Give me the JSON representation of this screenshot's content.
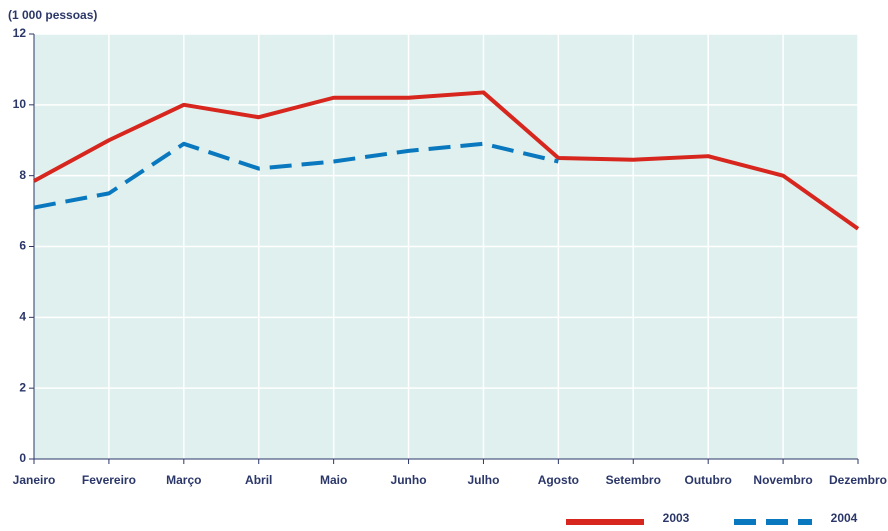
{
  "chart_data": {
    "type": "line",
    "y_label": "(1 000 pessoas)",
    "categories": [
      "Janeiro",
      "Fevereiro",
      "Março",
      "Abril",
      "Maio",
      "Junho",
      "Julho",
      "Agosto",
      "Setembro",
      "Outubro",
      "Novembro",
      "Dezembro"
    ],
    "series": [
      {
        "name": "2003",
        "color": "#d7261e",
        "dashed": false,
        "values": [
          7.85,
          9.0,
          10.0,
          9.65,
          10.2,
          10.2,
          10.35,
          8.5,
          8.45,
          8.55,
          8.0,
          6.5
        ]
      },
      {
        "name": "2004",
        "color": "#0a78be",
        "dashed": true,
        "values": [
          7.1,
          7.5,
          8.9,
          8.2,
          8.4,
          8.7,
          8.9,
          8.4,
          null,
          null,
          null,
          null
        ]
      }
    ],
    "ylim": [
      0,
      12
    ],
    "yticks": [
      0,
      2,
      4,
      6,
      8,
      10,
      12
    ],
    "grid": true,
    "plot_background": "#dff0ee"
  }
}
